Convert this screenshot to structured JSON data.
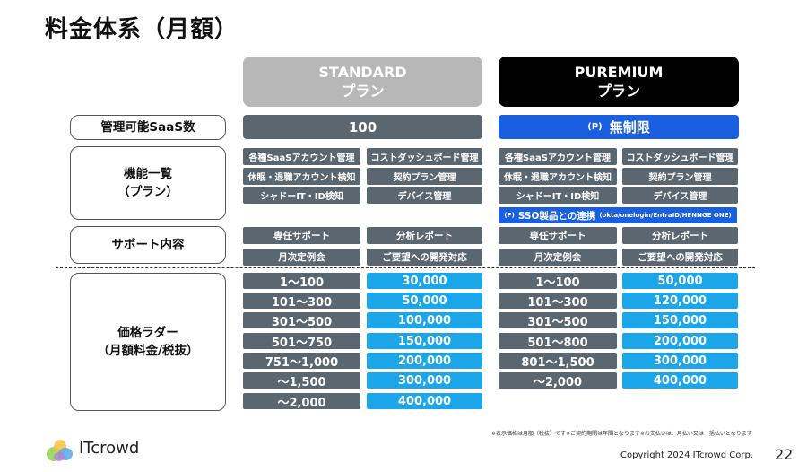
{
  "title": "料金体系（月額）",
  "plans": {
    "standard": {
      "name": "STANDARD",
      "sub": "プラン"
    },
    "premium": {
      "name": "PUREMIUM",
      "sub": "プラン"
    }
  },
  "labels": {
    "saas_count": "管理可能SaaS数",
    "features": "機能一覧\n（プラン）",
    "support": "サポート内容",
    "price_ladder": "価格ラダー\n（月額料金/税抜）"
  },
  "saas_count": {
    "standard": "100",
    "premium_mark": "(P)",
    "premium": "無制限"
  },
  "features": {
    "standard": [
      "各種SaaSアカウント管理",
      "コストダッシュボード管理",
      "休眠・退職アカウント検知",
      "契約プラン管理",
      "シャドーIT・ID検知",
      "デバイス管理"
    ],
    "premium": [
      "各種SaaSアカウント管理",
      "コストダッシュボード管理",
      "休眠・退職アカウント検知",
      "契約プラン管理",
      "シャドーIT・ID検知",
      "デバイス管理"
    ],
    "premium_extra": {
      "mark": "(P)",
      "label": "SSO製品との連携",
      "sub": "(okta/onelogin/EntraID/HENNGE ONE)"
    }
  },
  "support": {
    "standard": [
      "専任サポート",
      "分析レポート",
      "月次定例会",
      "ご要望への開発対応"
    ],
    "premium": [
      "専任サポート",
      "分析レポート",
      "月次定例会",
      "ご要望への開発対応"
    ]
  },
  "price_ladder": {
    "standard": [
      {
        "range": "1～100",
        "price": "30,000"
      },
      {
        "range": "101～300",
        "price": "50,000"
      },
      {
        "range": "301～500",
        "price": "100,000"
      },
      {
        "range": "501～750",
        "price": "150,000"
      },
      {
        "range": "751～1,000",
        "price": "200,000"
      },
      {
        "range": "～1,500",
        "price": "300,000"
      },
      {
        "range": "～2,000",
        "price": "400,000"
      }
    ],
    "premium": [
      {
        "range": "1～100",
        "price": "50,000"
      },
      {
        "range": "101～300",
        "price": "120,000"
      },
      {
        "range": "301～500",
        "price": "150,000"
      },
      {
        "range": "501～800",
        "price": "200,000"
      },
      {
        "range": "801～1,500",
        "price": "300,000"
      },
      {
        "range": "～2,000",
        "price": "400,000"
      }
    ]
  },
  "footnote": "※表示価格は月額（税抜）です※ご契約期間は年間となります※お支払いは、月払い又は一括払いとなります",
  "logo_text": "ITcrowd",
  "copyright": "Copyright 2024 ITcrowd Corp.",
  "page_number": "22",
  "colors": {
    "header_standard": "#b7b7b7",
    "header_premium": "#000000",
    "pill": "#5b6770",
    "accent_blue": "#1a5fe0",
    "price": "#1aa6e8"
  }
}
